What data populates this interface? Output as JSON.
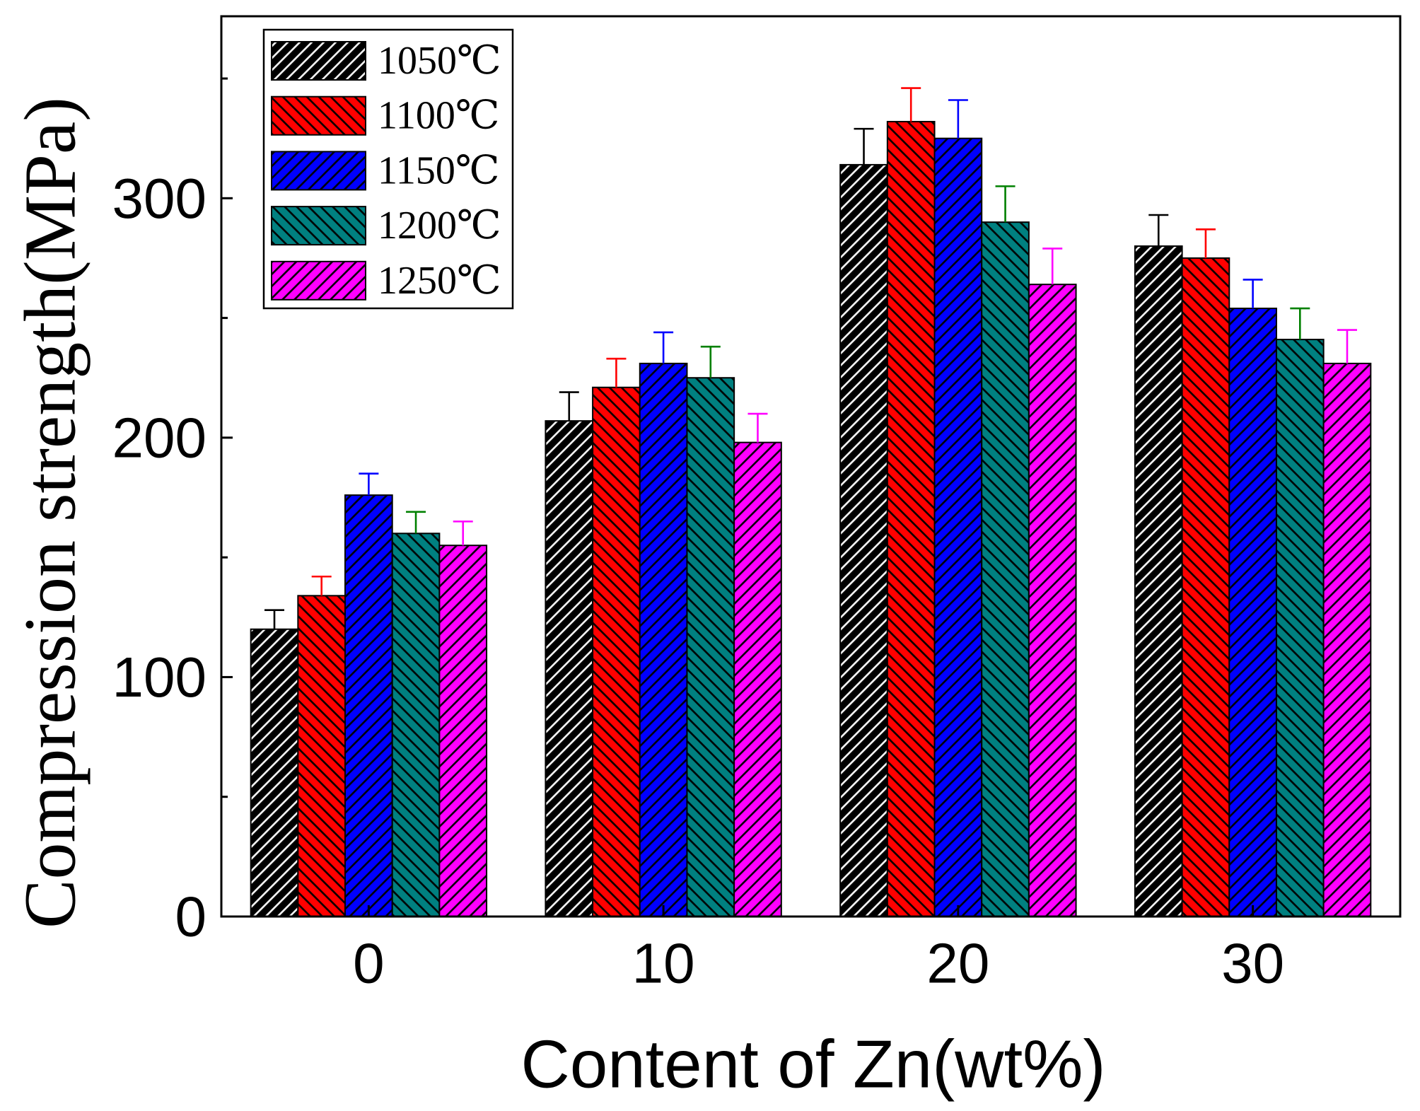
{
  "chart_data": {
    "type": "bar",
    "xlabel": "Content of Zn(wt%)",
    "ylabel": "Compression strength(MPa)",
    "categories": [
      "0",
      "10",
      "20",
      "30"
    ],
    "ylim": [
      0,
      376
    ],
    "yticks": [
      0,
      100,
      200,
      300
    ],
    "series": [
      {
        "name": "1050℃",
        "values": [
          120,
          207,
          314,
          280
        ],
        "errors": [
          8,
          12,
          15,
          13
        ],
        "color": "#000000",
        "hatch_color": "#ffffff",
        "hatch_angle": 45,
        "error_color": "#000000"
      },
      {
        "name": "1100℃",
        "values": [
          134,
          221,
          332,
          275
        ],
        "errors": [
          8,
          12,
          14,
          12
        ],
        "color": "#ff0000",
        "hatch_color": "#000000",
        "hatch_angle": -45,
        "error_color": "#ff0000"
      },
      {
        "name": "1150℃",
        "values": [
          176,
          231,
          325,
          254
        ],
        "errors": [
          9,
          13,
          16,
          12
        ],
        "color": "#0000ff",
        "hatch_color": "#000000",
        "hatch_angle": 45,
        "error_color": "#0000ff"
      },
      {
        "name": "1200℃",
        "values": [
          160,
          225,
          290,
          241
        ],
        "errors": [
          9,
          13,
          15,
          13
        ],
        "color": "#008080",
        "hatch_color": "#000000",
        "hatch_angle": -45,
        "error_color": "#008000"
      },
      {
        "name": "1250℃",
        "values": [
          155,
          198,
          264,
          231
        ],
        "errors": [
          10,
          12,
          15,
          14
        ],
        "color": "#ff00ff",
        "hatch_color": "#000000",
        "hatch_angle": 45,
        "error_color": "#ff00ff"
      }
    ]
  }
}
